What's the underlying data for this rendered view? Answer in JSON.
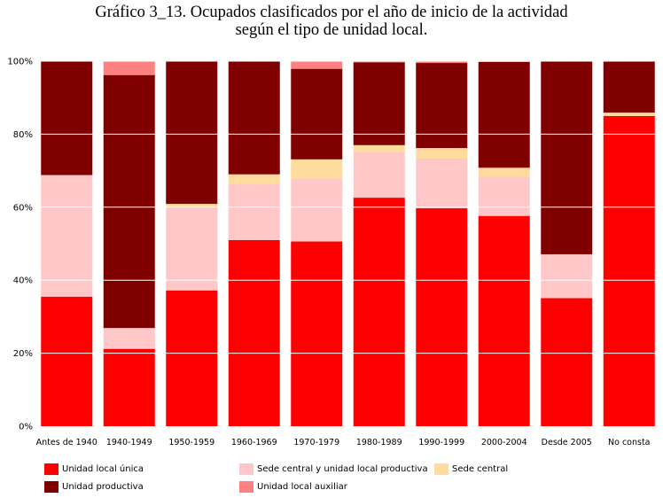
{
  "title_line1": "Gráfico 3_13. Ocupados clasificados por el año de inicio de la actividad",
  "title_line2": "según el tipo de unidad local.",
  "chart_data": {
    "type": "bar",
    "stacked": true,
    "normalized": true,
    "title": "Gráfico 3_13. Ocupados clasificados por el año de inicio de la actividad según el tipo de unidad local.",
    "xlabel": "",
    "ylabel": "",
    "ylim": [
      0,
      100
    ],
    "y_ticks": [
      "0%",
      "20%",
      "40%",
      "60%",
      "80%",
      "100%"
    ],
    "grid": true,
    "legend_position": "bottom",
    "categories": [
      "Antes de 1940",
      "1940-1949",
      "1950-1959",
      "1960-1969",
      "1970-1979",
      "1980-1989",
      "1990-1999",
      "2000-2004",
      "Desde 2005",
      "No consta"
    ],
    "series": [
      {
        "name": "Unidad local única",
        "color": "#ff0000",
        "values": [
          35.5,
          21.2,
          37.2,
          51.0,
          50.6,
          62.6,
          59.7,
          57.6,
          35.1,
          85.0
        ]
      },
      {
        "name": "Sede central y unidad local productiva",
        "color": "#ffc7c7",
        "values": [
          33.3,
          5.7,
          22.8,
          15.3,
          17.2,
          12.6,
          13.6,
          10.7,
          12.0,
          0.0
        ]
      },
      {
        "name": "Sede central",
        "color": "#ffdb9e",
        "values": [
          0.0,
          0.0,
          0.9,
          2.7,
          5.3,
          1.8,
          2.9,
          2.5,
          0.0,
          0.9
        ]
      },
      {
        "name": "Unidad productiva",
        "color": "#800000",
        "values": [
          31.2,
          69.3,
          39.1,
          31.0,
          24.8,
          22.7,
          23.3,
          29.0,
          52.9,
          14.1
        ]
      },
      {
        "name": "Unidad local auxiliar",
        "color": "#ff8080",
        "values": [
          0.0,
          3.8,
          0.0,
          0.0,
          2.1,
          0.3,
          0.5,
          0.2,
          0.0,
          0.0
        ]
      }
    ]
  }
}
